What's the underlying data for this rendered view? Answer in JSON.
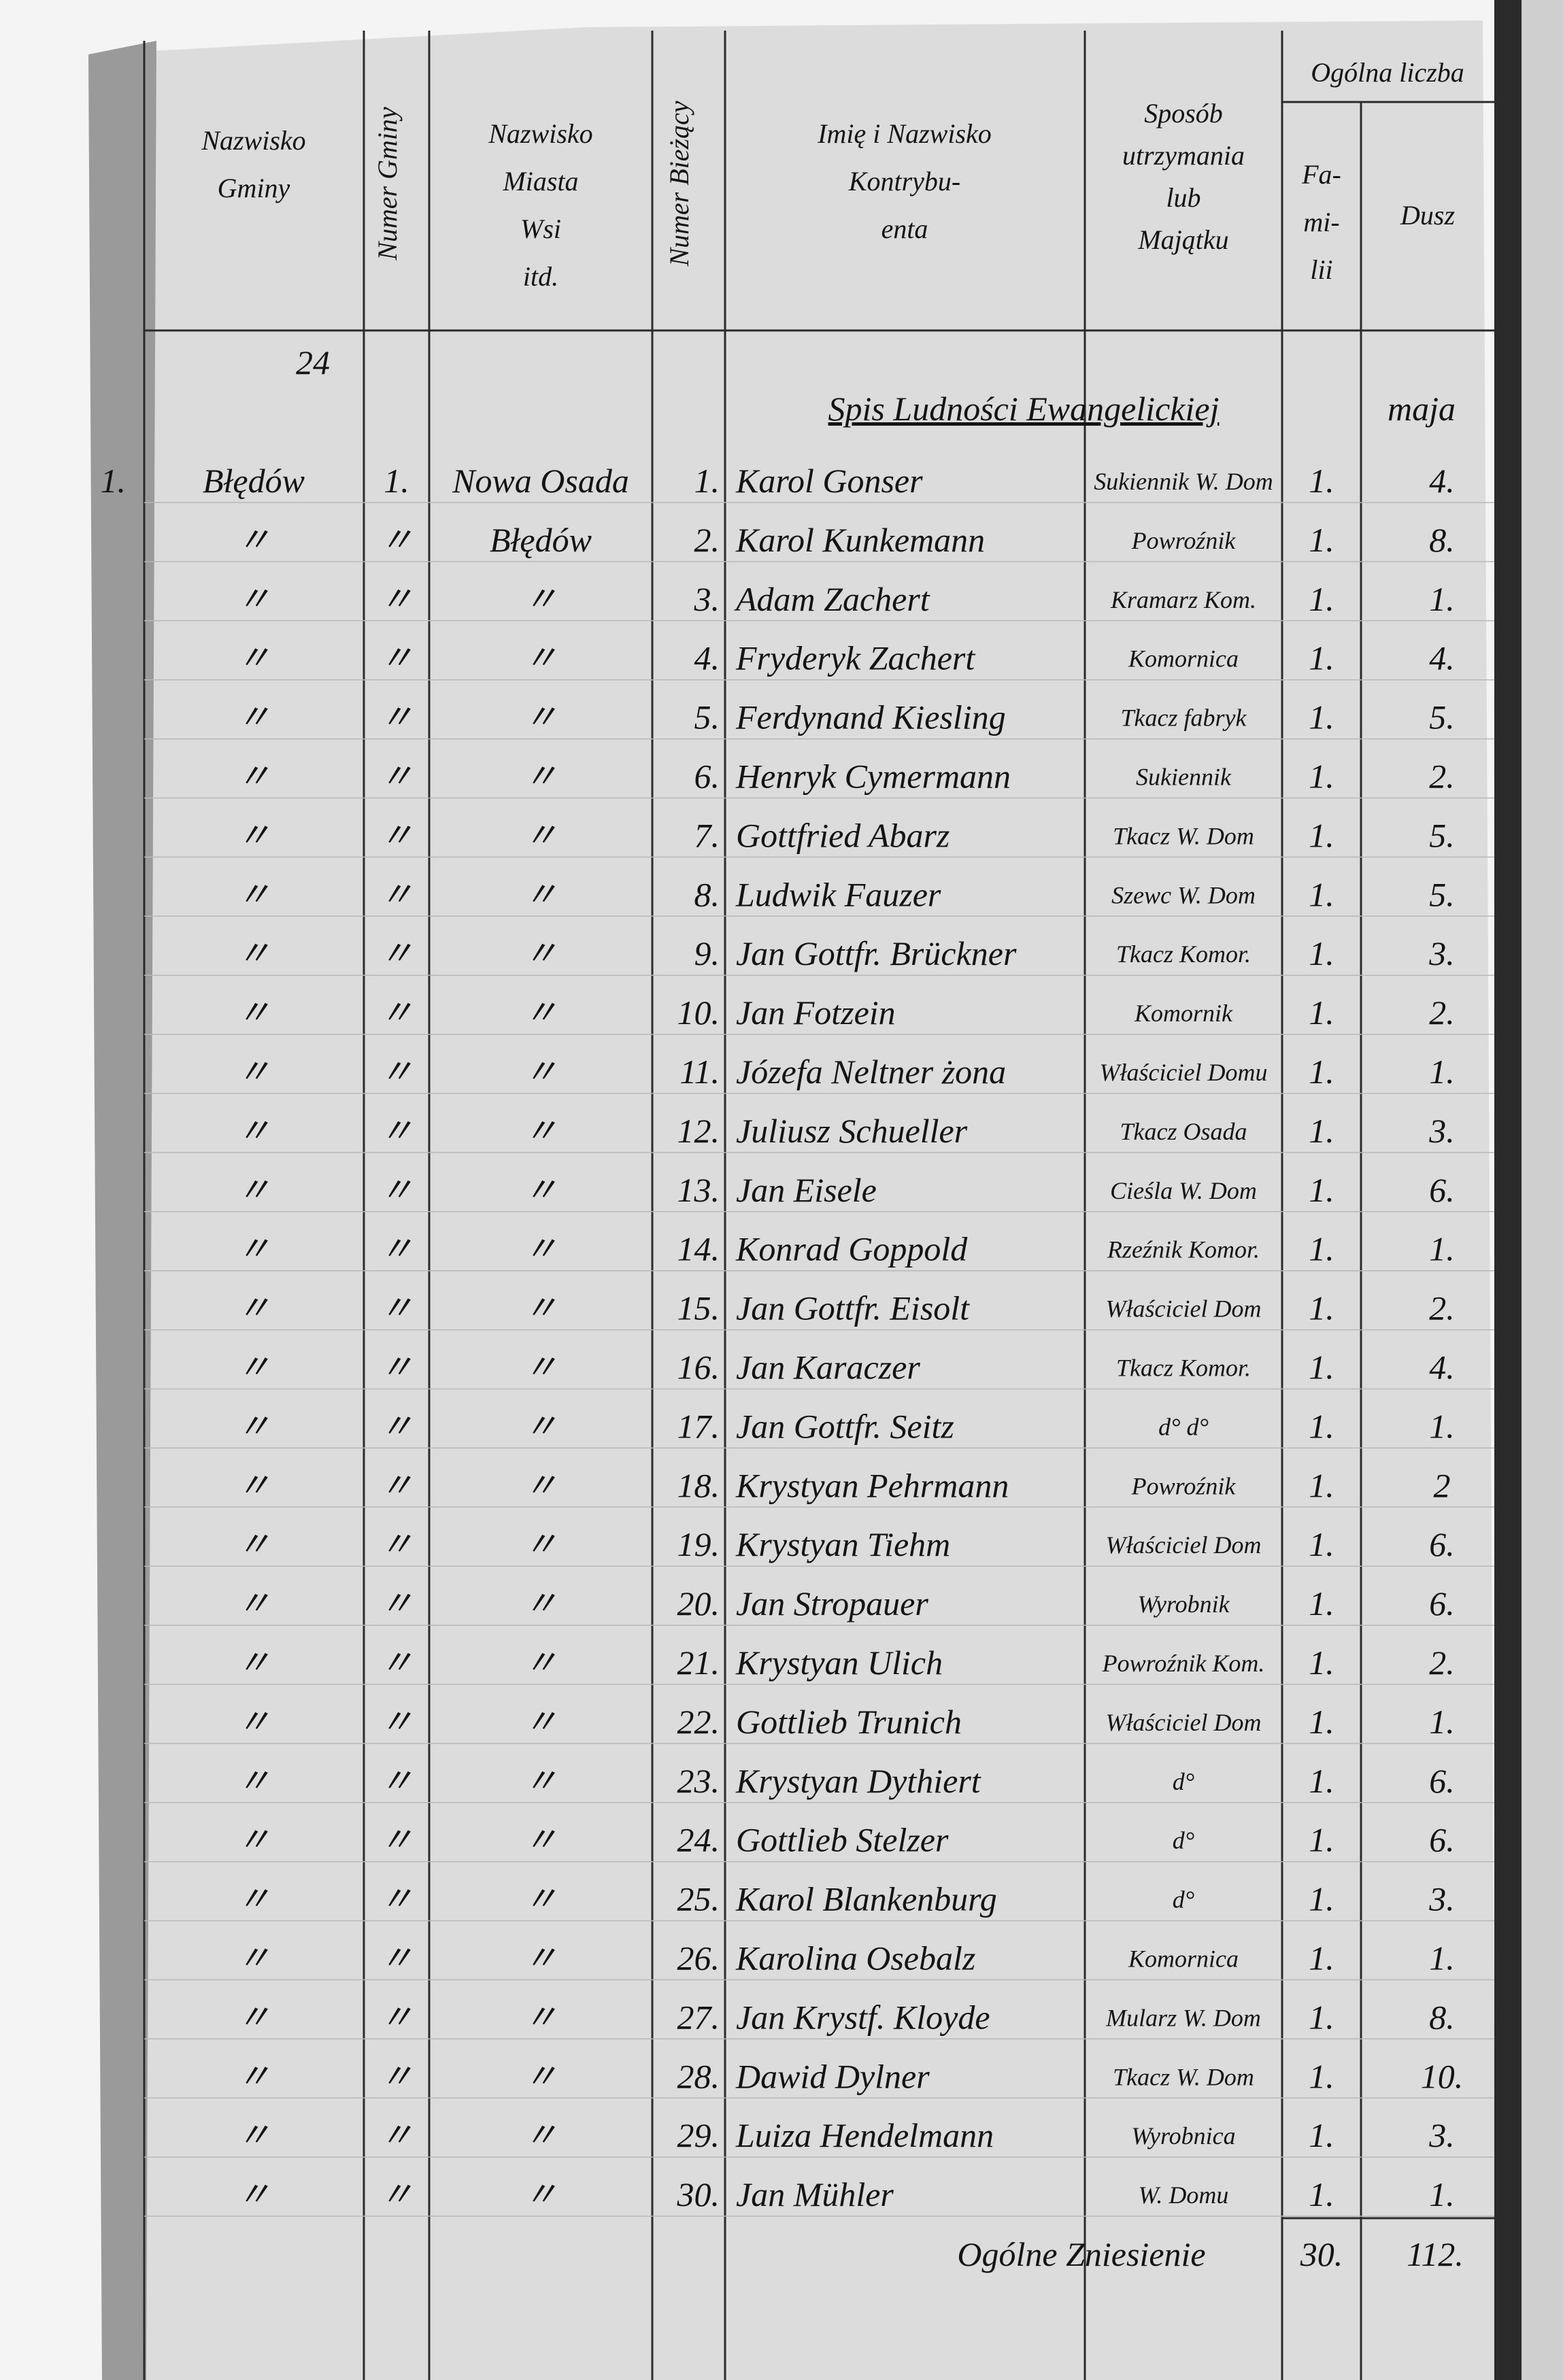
{
  "header": {
    "group": "Ogólna liczba",
    "columns": [
      {
        "lines": [
          "Nazwisko",
          "Gminy"
        ]
      },
      {
        "lines": [
          "Numer Gminy"
        ]
      },
      {
        "lines": [
          "Nazwisko",
          "Miasta",
          "Wsi",
          "itd."
        ]
      },
      {
        "lines": [
          "Numer Bieżący"
        ]
      },
      {
        "lines": [
          "Imię i Nazwisko",
          "Kontrybu-",
          "enta"
        ]
      },
      {
        "lines": [
          "Sposób",
          "utrzymania",
          "lub",
          "Majątku"
        ]
      },
      {
        "lines": [
          "Fa-",
          "mi-",
          "lii"
        ]
      },
      {
        "lines": [
          "Dusz"
        ]
      }
    ]
  },
  "page_mark": "24",
  "section_title": "Spis Ludności Ewangelickiej",
  "section_suffix": "maja",
  "entry": {
    "index": "1.",
    "gmina": "Błędów",
    "gmina_number": "1.",
    "place": [
      "Nowa Osada",
      "Błędów"
    ]
  },
  "ditto": "〃",
  "rows": [
    [
      "1.",
      "Karol Gonser",
      "Sukiennik W. Dom",
      "1.",
      "4."
    ],
    [
      "2.",
      "Karol Kunkemann",
      "Powroźnik",
      "1.",
      "8."
    ],
    [
      "3.",
      "Adam Zachert",
      "Kramarz Kom.",
      "1.",
      "1."
    ],
    [
      "4.",
      "Fryderyk Zachert",
      "Komornica",
      "1.",
      "4."
    ],
    [
      "5.",
      "Ferdynand Kiesling",
      "Tkacz fabryk",
      "1.",
      "5."
    ],
    [
      "6.",
      "Henryk Cymermann",
      "Sukiennik",
      "1.",
      "2."
    ],
    [
      "7.",
      "Gottfried Abarz",
      "Tkacz W. Dom",
      "1.",
      "5."
    ],
    [
      "8.",
      "Ludwik Fauzer",
      "Szewc W. Dom",
      "1.",
      "5."
    ],
    [
      "9.",
      "Jan Gottfr. Brückner",
      "Tkacz Komor.",
      "1.",
      "3."
    ],
    [
      "10.",
      "Jan Fotzein",
      "Komornik",
      "1.",
      "2."
    ],
    [
      "11.",
      "Józefa Neltner żona",
      "Właściciel Domu",
      "1.",
      "1."
    ],
    [
      "12.",
      "Juliusz Schueller",
      "Tkacz Osada",
      "1.",
      "3."
    ],
    [
      "13.",
      "Jan Eisele",
      "Cieśla W. Dom",
      "1.",
      "6."
    ],
    [
      "14.",
      "Konrad Goppold",
      "Rzeźnik Komor.",
      "1.",
      "1."
    ],
    [
      "15.",
      "Jan Gottfr. Eisolt",
      "Właściciel Dom",
      "1.",
      "2."
    ],
    [
      "16.",
      "Jan Karaczer",
      "Tkacz Komor.",
      "1.",
      "4."
    ],
    [
      "17.",
      "Jan Gottfr. Seitz",
      "d° d°",
      "1.",
      "1."
    ],
    [
      "18.",
      "Krystyan Pehrmann",
      "Powroźnik",
      "1.",
      "2"
    ],
    [
      "19.",
      "Krystyan Tiehm",
      "Właściciel Dom",
      "1.",
      "6."
    ],
    [
      "20.",
      "Jan Stropauer",
      "Wyrobnik",
      "1.",
      "6."
    ],
    [
      "21.",
      "Krystyan Ulich",
      "Powroźnik Kom.",
      "1.",
      "2."
    ],
    [
      "22.",
      "Gottlieb Trunich",
      "Właściciel Dom",
      "1.",
      "1."
    ],
    [
      "23.",
      "Krystyan Dythiert",
      "d°",
      "1.",
      "6."
    ],
    [
      "24.",
      "Gottlieb Stelzer",
      "d°",
      "1.",
      "6."
    ],
    [
      "25.",
      "Karol Blankenburg",
      "d°",
      "1.",
      "3."
    ],
    [
      "26.",
      "Karolina Osebalz",
      "Komornica",
      "1.",
      "1."
    ],
    [
      "27.",
      "Jan Krystf. Kloyde",
      "Mularz W. Dom",
      "1.",
      "8."
    ],
    [
      "28.",
      "Dawid Dylner",
      "Tkacz W. Dom",
      "1.",
      "10."
    ],
    [
      "29.",
      "Luiza Hendelmann",
      "Wyrobnica",
      "1.",
      "3."
    ],
    [
      "30.",
      "Jan Mühler",
      "W. Domu",
      "1.",
      "1."
    ]
  ],
  "total": {
    "label": "Ogólne Zniesienie",
    "families": "30.",
    "souls": "112."
  }
}
